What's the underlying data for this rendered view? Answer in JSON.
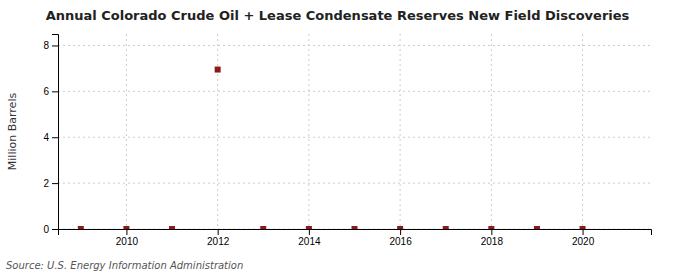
{
  "chart_data": {
    "type": "scatter",
    "title": "Annual Colorado Crude Oil + Lease Condensate Reserves New Field Discoveries",
    "ylabel": "Million Barrels",
    "source": "Source: U.S. Energy Information Administration",
    "x": [
      2009,
      2010,
      2011,
      2012,
      2013,
      2014,
      2015,
      2016,
      2017,
      2018,
      2019,
      2020
    ],
    "values": [
      0.0,
      0.0,
      0.0,
      6.95,
      0.0,
      0.0,
      0.0,
      0.0,
      0.0,
      0.0,
      0.0,
      0.0
    ],
    "color": "#8b1a1a",
    "marker": "square",
    "xlim": [
      2008.5,
      2021.5
    ],
    "ylim": [
      0,
      8.5
    ],
    "xticks": [
      2010,
      2012,
      2014,
      2016,
      2018,
      2020
    ],
    "yticks": [
      0,
      2,
      4,
      6,
      8
    ],
    "grid": true
  }
}
